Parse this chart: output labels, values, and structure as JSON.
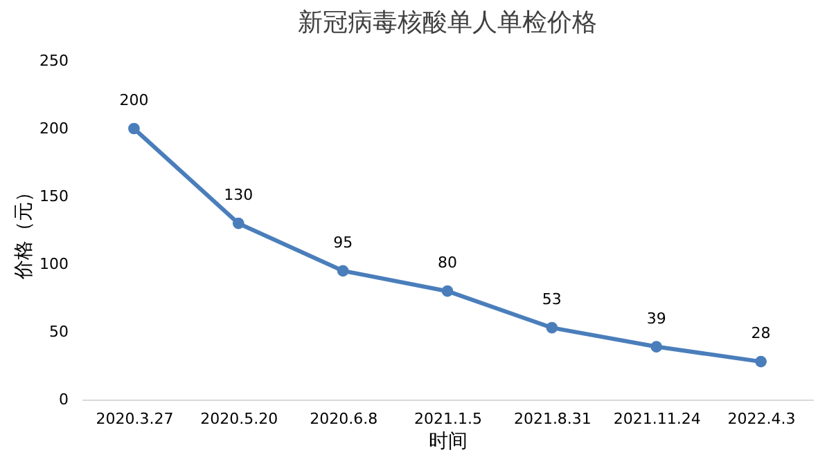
{
  "chart_data": {
    "type": "line",
    "title": "新冠病毒核酸单人单检价格",
    "xlabel": "时间",
    "ylabel": "价格（元）",
    "categories": [
      "2020.3.27",
      "2020.5.20",
      "2020.6.8",
      "2021.1.5",
      "2021.8.31",
      "2021.11.24",
      "2022.4.3"
    ],
    "series": [
      {
        "color": "#4a7ebb",
        "values": [
          200,
          130,
          95,
          80,
          53,
          39,
          28
        ]
      }
    ],
    "ylim": [
      0,
      250
    ],
    "yticks": [
      0,
      50,
      100,
      150,
      200,
      250
    ],
    "grid": false,
    "marker": "circle",
    "line_style": "solid",
    "data_labels": true
  }
}
